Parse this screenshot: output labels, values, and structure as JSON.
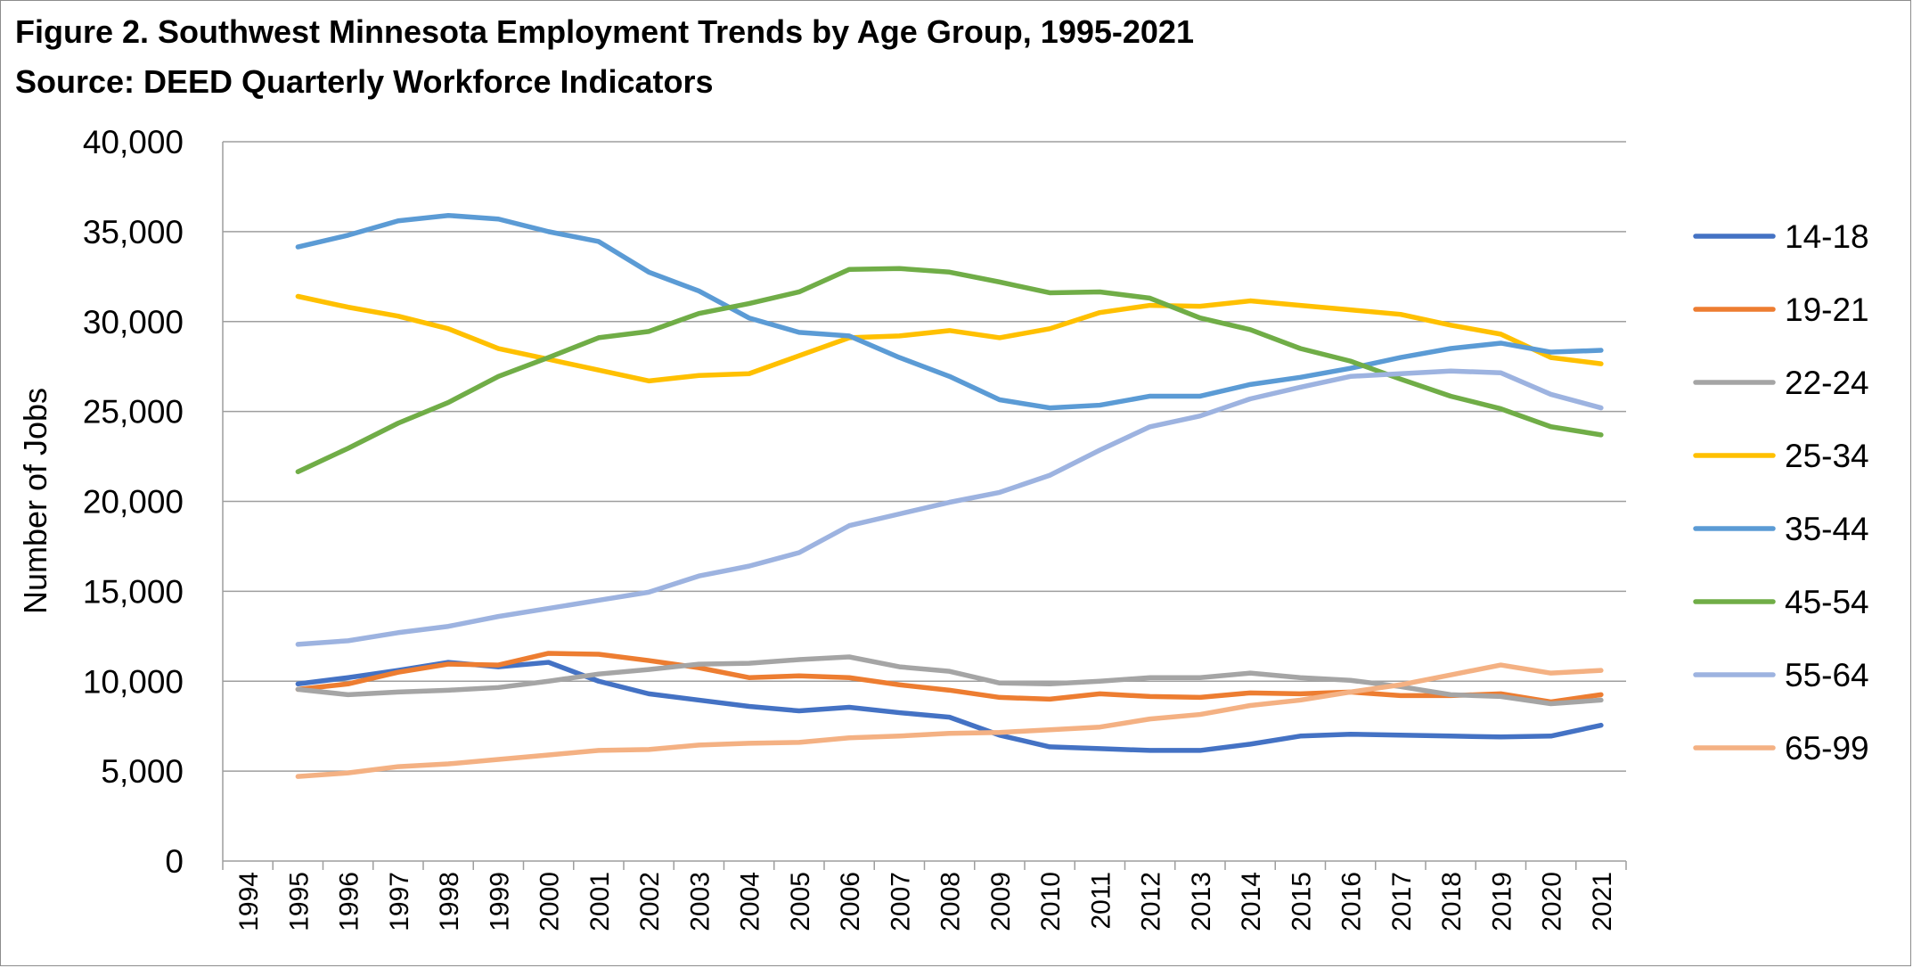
{
  "chart_data": {
    "type": "line",
    "title": "Figure 2. Southwest Minnesota Employment Trends by Age Group, 1995-2021",
    "subtitle": "Source: DEED Quarterly Workforce Indicators",
    "ylabel": "Number of Jobs",
    "xlabel": "",
    "ylim": [
      0,
      40000
    ],
    "y_ticks": [
      0,
      5000,
      10000,
      15000,
      20000,
      25000,
      30000,
      35000,
      40000
    ],
    "y_tick_labels": [
      "0",
      "5,000",
      "10,000",
      "15,000",
      "20,000",
      "25,000",
      "30,000",
      "35,000",
      "40,000"
    ],
    "categories": [
      "1994",
      "1995",
      "1996",
      "1997",
      "1998",
      "1999",
      "2000",
      "2001",
      "2002",
      "2003",
      "2004",
      "2005",
      "2006",
      "2007",
      "2008",
      "2009",
      "2010",
      "2011",
      "2012",
      "2013",
      "2014",
      "2015",
      "2016",
      "2017",
      "2018",
      "2019",
      "2020",
      "2021"
    ],
    "grid": "horizontal",
    "legend_position": "right",
    "series": [
      {
        "name": "14-18",
        "color": "#4472C4",
        "values": [
          null,
          9850,
          10200,
          10600,
          11050,
          10800,
          11050,
          10000,
          9300,
          8950,
          8600,
          8350,
          8550,
          8250,
          8000,
          7000,
          6350,
          6250,
          6150,
          6150,
          6500,
          6950,
          7050,
          7000,
          6950,
          6900,
          6950,
          7550
        ]
      },
      {
        "name": "19-21",
        "color": "#ED7D31",
        "values": [
          null,
          9550,
          9850,
          10500,
          10950,
          10900,
          11550,
          11500,
          11150,
          10750,
          10200,
          10300,
          10200,
          9800,
          9500,
          9100,
          9000,
          9300,
          9150,
          9100,
          9350,
          9300,
          9400,
          9200,
          9200,
          9300,
          8850,
          9250
        ]
      },
      {
        "name": "22-24",
        "color": "#A5A5A5",
        "values": [
          null,
          9550,
          9250,
          9400,
          9500,
          9650,
          10000,
          10400,
          10650,
          10950,
          11000,
          11200,
          11350,
          10800,
          10550,
          9900,
          9850,
          10000,
          10200,
          10200,
          10450,
          10200,
          10050,
          9700,
          9250,
          9150,
          8750,
          8950
        ]
      },
      {
        "name": "25-34",
        "color": "#FFC000",
        "values": [
          null,
          31400,
          30800,
          30300,
          29600,
          28500,
          27900,
          27300,
          26700,
          27000,
          27100,
          28100,
          29100,
          29200,
          29500,
          29100,
          29600,
          30500,
          30900,
          30850,
          31150,
          30900,
          30650,
          30400,
          29800,
          29300,
          28000,
          27650
        ]
      },
      {
        "name": "35-44",
        "color": "#5B9BD5",
        "values": [
          null,
          34150,
          34800,
          35600,
          35900,
          35700,
          35000,
          34450,
          32750,
          31700,
          30200,
          29400,
          29200,
          28000,
          26950,
          25650,
          25200,
          25350,
          25850,
          25850,
          26500,
          26900,
          27400,
          28000,
          28500,
          28800,
          28300,
          28400
        ]
      },
      {
        "name": "45-54",
        "color": "#70AD47",
        "values": [
          null,
          21650,
          22950,
          24350,
          25500,
          26950,
          28000,
          29100,
          29450,
          30450,
          31000,
          31650,
          32900,
          32950,
          32750,
          32200,
          31600,
          31650,
          31300,
          30200,
          29550,
          28500,
          27800,
          26800,
          25850,
          25150,
          24150,
          23700
        ]
      },
      {
        "name": "55-64",
        "color": "#9DB3E0",
        "values": [
          null,
          12050,
          12250,
          12700,
          13050,
          13600,
          14050,
          14500,
          14950,
          15850,
          16400,
          17150,
          18650,
          19300,
          19950,
          20500,
          21450,
          22850,
          24150,
          24750,
          25700,
          26350,
          26950,
          27100,
          27250,
          27150,
          25950,
          25200
        ]
      },
      {
        "name": "65-99",
        "color": "#F4B183",
        "values": [
          null,
          4700,
          4900,
          5250,
          5400,
          5650,
          5900,
          6150,
          6200,
          6450,
          6550,
          6600,
          6850,
          6950,
          7100,
          7150,
          7300,
          7450,
          7900,
          8150,
          8650,
          8950,
          9400,
          9800,
          10350,
          10900,
          10450,
          10600
        ]
      }
    ]
  }
}
